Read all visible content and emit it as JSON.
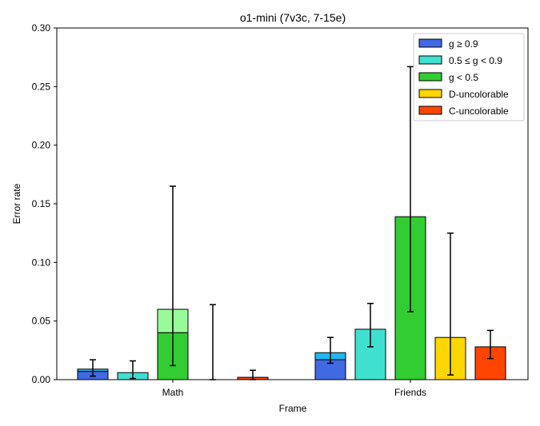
{
  "chart_data": {
    "type": "bar",
    "title": "o1-mini (7v3c, 7-15e)",
    "xlabel": "Frame",
    "ylabel": "Error rate",
    "ylim": [
      0,
      0.3
    ],
    "yticks": [
      "0.00",
      "0.05",
      "0.10",
      "0.15",
      "0.20",
      "0.25",
      "0.30"
    ],
    "categories": [
      "Math",
      "Friends"
    ],
    "grid": false,
    "legend_position": "top-right",
    "series": [
      {
        "name": "g ≥ 0.9",
        "color": "#4169e1",
        "stack_color": "#1fb8f0",
        "values": [
          0.007,
          0.017
        ],
        "stack_totals": [
          0.009,
          0.023
        ],
        "err_low": [
          0.003,
          0.014
        ],
        "err_high": [
          0.017,
          0.036
        ]
      },
      {
        "name": "0.5 ≤ g < 0.9",
        "color": "#40e0d0",
        "stack_color": "#40e0d0",
        "values": [
          0.006,
          0.043
        ],
        "stack_totals": [
          0.006,
          0.043
        ],
        "err_low": [
          0.001,
          0.028
        ],
        "err_high": [
          0.016,
          0.065
        ]
      },
      {
        "name": "g < 0.5",
        "color": "#32cd32",
        "stack_color": "#98fb98",
        "values": [
          0.04,
          0.139
        ],
        "stack_totals": [
          0.06,
          0.139
        ],
        "err_low": [
          0.012,
          0.058
        ],
        "err_high": [
          0.165,
          0.267
        ]
      },
      {
        "name": "D-uncolorable",
        "color": "#ffd700",
        "stack_color": "#ffd700",
        "values": [
          0.0,
          0.036
        ],
        "stack_totals": [
          0.0,
          0.036
        ],
        "err_low": [
          0.0,
          0.004
        ],
        "err_high": [
          0.064,
          0.125
        ]
      },
      {
        "name": "C-uncolorable",
        "color": "#ff4500",
        "stack_color": "#ff4500",
        "values": [
          0.002,
          0.028
        ],
        "stack_totals": [
          0.002,
          0.028
        ],
        "err_low": [
          0.0,
          0.018
        ],
        "err_high": [
          0.008,
          0.042
        ]
      }
    ]
  }
}
